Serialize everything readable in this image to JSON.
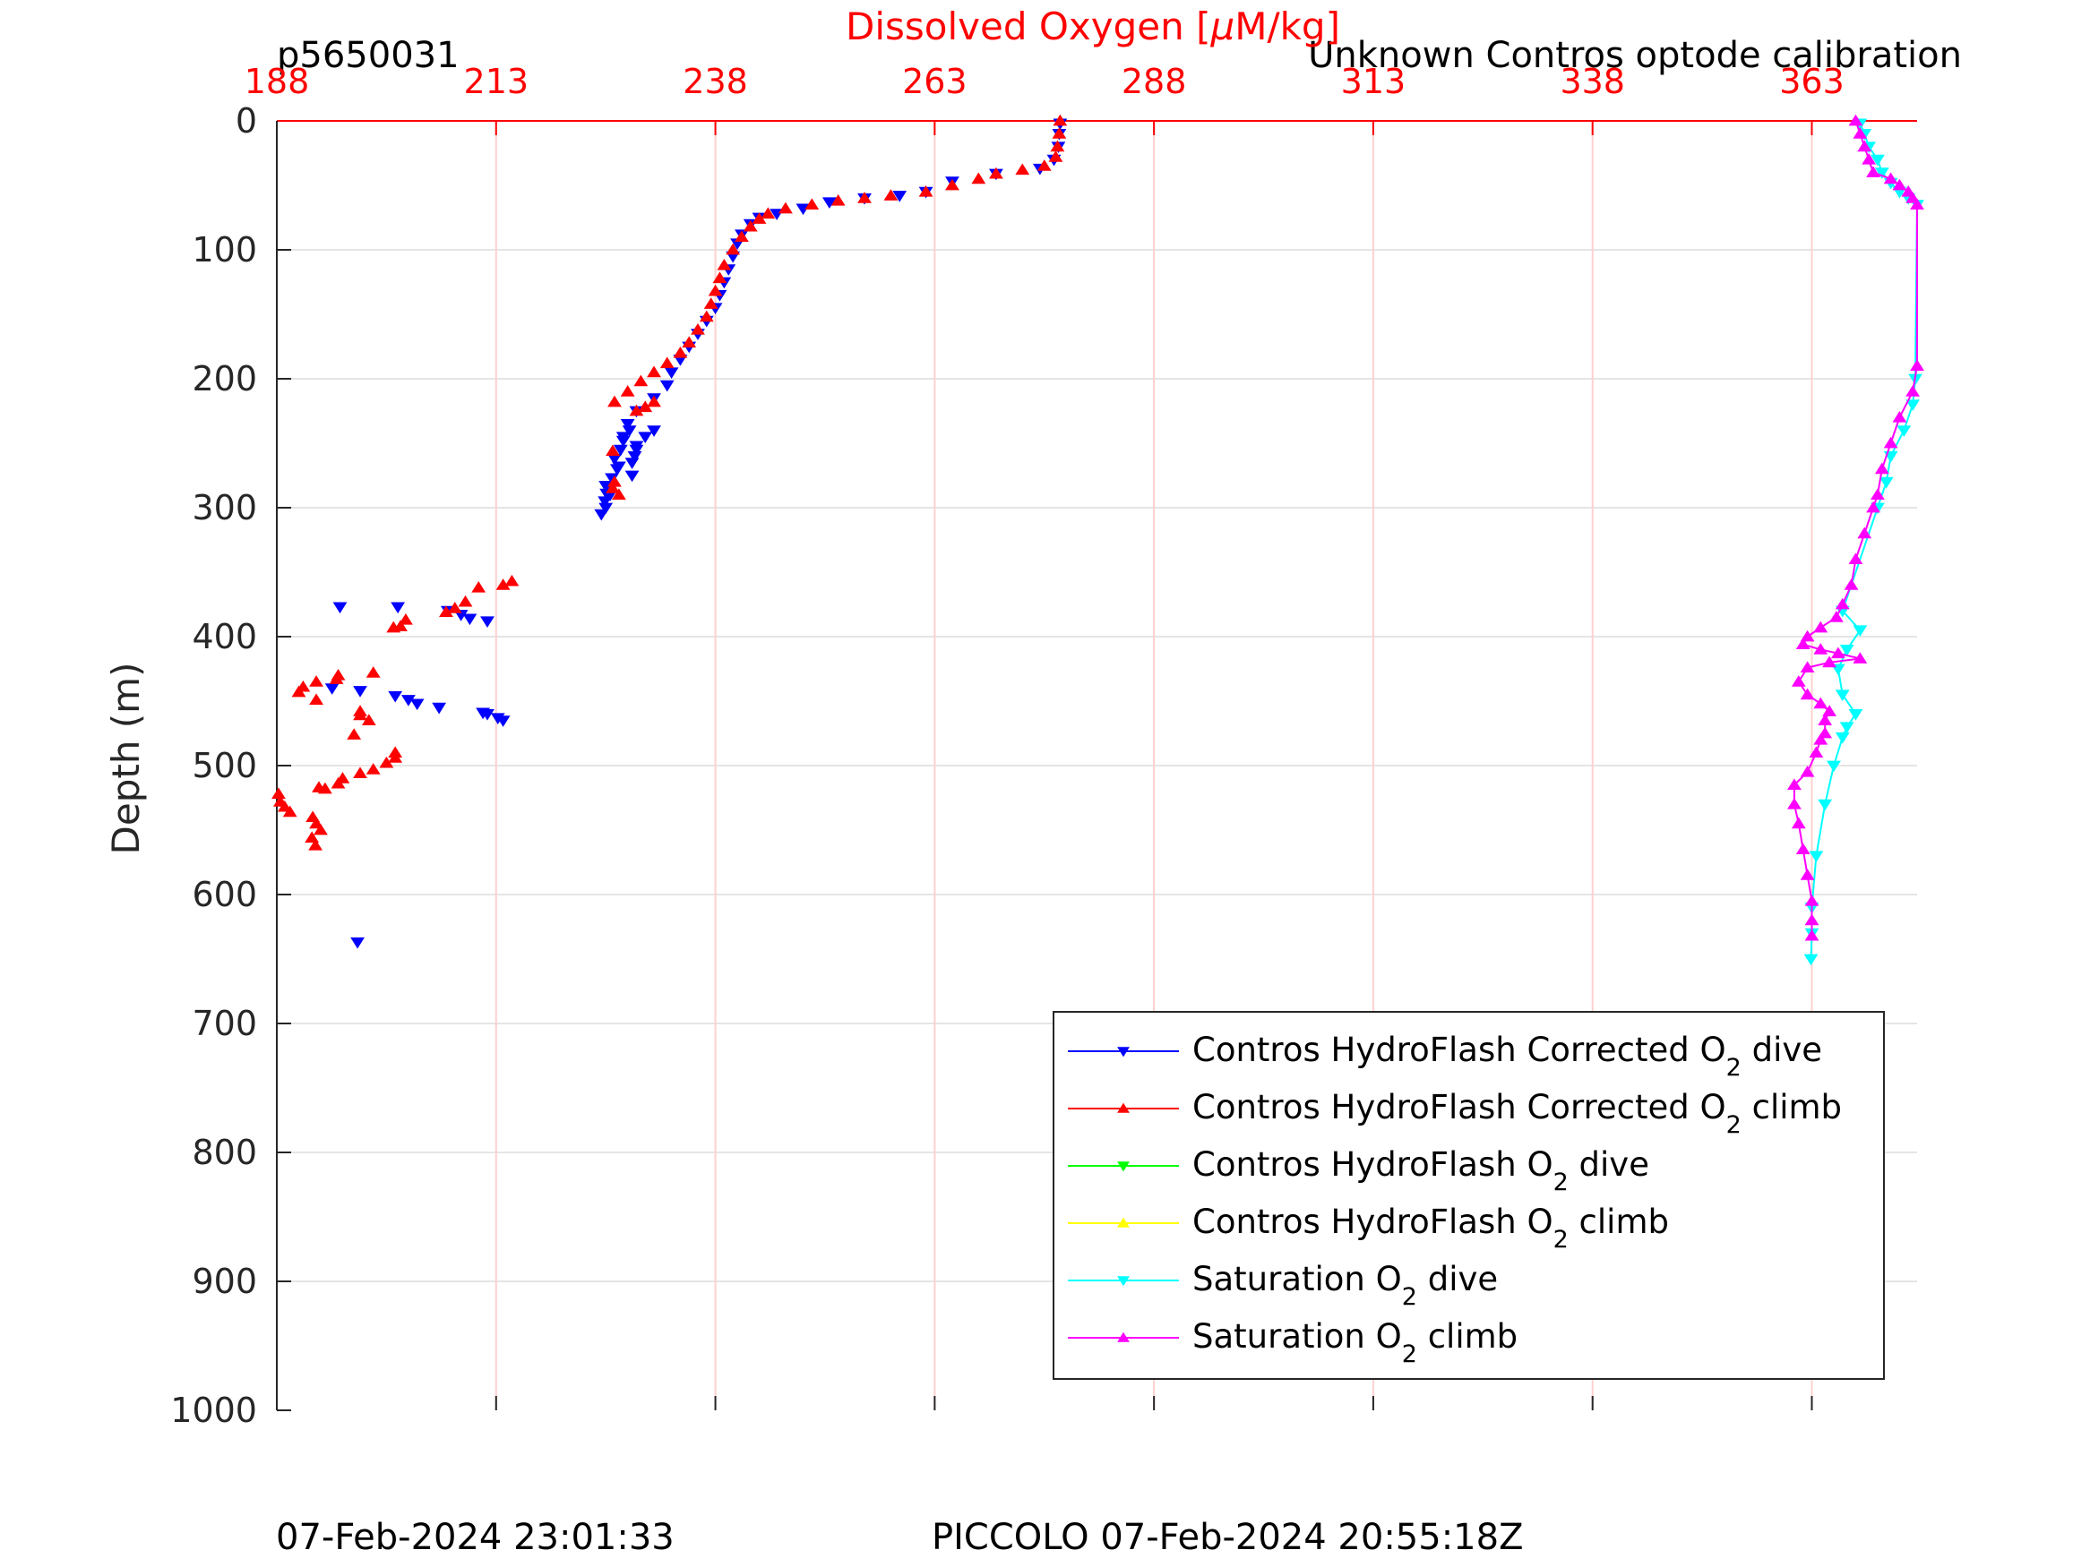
{
  "header": {
    "left_id": "p5650031",
    "right_note": "Unknown Contros optode calibration"
  },
  "footer": {
    "left_timestamp": "07-Feb-2024 23:01:33",
    "right_timestamp": "PICCOLO 07-Feb-2024 20:55:18Z"
  },
  "colors": {
    "dive_corrected": "#0000ff",
    "climb_corrected": "#ff0000",
    "dive_raw": "#00ff00",
    "climb_raw": "#ffff00",
    "sat_dive": "#00ffff",
    "sat_climb": "#ff00ff",
    "axis": "#262626",
    "top_axis": "#ff0000",
    "grid": "#e5e5e5",
    "x_grid": "#ffd0d0"
  },
  "chart_data": {
    "type": "scatter",
    "title": "",
    "xlabel_prefix": "Dissolved Oxygen [",
    "xlabel_mu": "μ",
    "xlabel_suffix": "M/kg]",
    "ylabel": "Depth (m)",
    "xlim": [
      188,
      375
    ],
    "ylim": [
      0,
      1000
    ],
    "y_reversed": true,
    "x_ticks": [
      "188",
      "213",
      "238",
      "263",
      "288",
      "313",
      "338",
      "363"
    ],
    "y_ticks": [
      "0",
      "100",
      "200",
      "300",
      "400",
      "500",
      "600",
      "700",
      "800",
      "900",
      "1000"
    ],
    "grid": true,
    "legend_position": "lower-right",
    "legend": [
      {
        "main": "Contros HydroFlash Corrected O",
        "sub": "2",
        "tail": " dive",
        "color_key": "dive_corrected",
        "marker": "down"
      },
      {
        "main": "Contros HydroFlash Corrected O",
        "sub": "2",
        "tail": " climb",
        "color_key": "climb_corrected",
        "marker": "up"
      },
      {
        "main": "Contros HydroFlash O",
        "sub": "2",
        "tail": " dive",
        "color_key": "dive_raw",
        "marker": "down"
      },
      {
        "main": "Contros HydroFlash O",
        "sub": "2",
        "tail": " climb",
        "color_key": "climb_raw",
        "marker": "up"
      },
      {
        "main": "Saturation O",
        "sub": "2",
        "tail": " dive",
        "color_key": "sat_dive",
        "marker": "down"
      },
      {
        "main": "Saturation O",
        "sub": "2",
        "tail": " climb",
        "color_key": "sat_climb",
        "marker": "up"
      }
    ],
    "series": [
      {
        "name": "Contros HydroFlash Corrected O2 dive",
        "color_key": "dive_corrected",
        "marker": "down",
        "line": false,
        "points": [
          [
            277.3,
            2
          ],
          [
            277.2,
            10
          ],
          [
            277.1,
            20
          ],
          [
            276.6,
            30
          ],
          [
            275.0,
            37
          ],
          [
            270,
            41
          ],
          [
            265,
            47
          ],
          [
            262,
            55
          ],
          [
            259,
            58
          ],
          [
            255,
            60
          ],
          [
            251,
            63
          ],
          [
            248,
            68
          ],
          [
            245,
            72
          ],
          [
            243,
            75
          ],
          [
            242,
            80
          ],
          [
            241,
            88
          ],
          [
            240.5,
            95
          ],
          [
            240,
            105
          ],
          [
            239.5,
            115
          ],
          [
            239,
            125
          ],
          [
            238.5,
            135
          ],
          [
            238,
            145
          ],
          [
            237,
            155
          ],
          [
            236,
            165
          ],
          [
            235,
            175
          ],
          [
            234,
            185
          ],
          [
            233,
            195
          ],
          [
            232.5,
            205
          ],
          [
            231,
            215
          ],
          [
            229,
            225
          ],
          [
            228,
            235
          ],
          [
            227.5,
            245
          ],
          [
            229,
            255
          ],
          [
            228.5,
            265
          ],
          [
            228.5,
            275
          ],
          [
            225.5,
            283
          ],
          [
            226.8,
            270
          ],
          [
            226,
            290
          ],
          [
            225.5,
            300
          ],
          [
            225,
            305
          ]
        ]
      },
      {
        "name": "Contros HydroFlash Corrected O2 dive (scattered)",
        "color_key": "dive_corrected",
        "marker": "down",
        "line": false,
        "points": [
          [
            227.2,
            255
          ],
          [
            226.5,
            262
          ],
          [
            227.0,
            268
          ],
          [
            226.2,
            277
          ],
          [
            225.8,
            283
          ],
          [
            225.6,
            289
          ],
          [
            225.4,
            295
          ],
          [
            227.5,
            248
          ],
          [
            229.0,
            252
          ],
          [
            230.0,
            245
          ],
          [
            231.0,
            240
          ],
          [
            228.2,
            240
          ],
          [
            228.8,
            260
          ],
          [
            195.2,
            377
          ],
          [
            201.8,
            377
          ],
          [
            207.5,
            380
          ],
          [
            209,
            383
          ],
          [
            210,
            386
          ],
          [
            212,
            388
          ],
          [
            194.3,
            440
          ],
          [
            197.5,
            442
          ],
          [
            201.5,
            446
          ],
          [
            203,
            449
          ],
          [
            204,
            452
          ],
          [
            206.5,
            455
          ],
          [
            211.5,
            459
          ],
          [
            212,
            460
          ],
          [
            213.2,
            463
          ],
          [
            213.8,
            465
          ],
          [
            197.2,
            637
          ]
        ]
      },
      {
        "name": "Contros HydroFlash Corrected O2 climb",
        "color_key": "climb_corrected",
        "marker": "up",
        "line": false,
        "points": [
          [
            277.3,
            0
          ],
          [
            277.2,
            10
          ],
          [
            277.0,
            20
          ],
          [
            276.8,
            28
          ],
          [
            275.5,
            35
          ],
          [
            273,
            38
          ],
          [
            270,
            41
          ],
          [
            268,
            45
          ],
          [
            265,
            50
          ],
          [
            262,
            55
          ],
          [
            258,
            58
          ],
          [
            255,
            60
          ],
          [
            252,
            62
          ],
          [
            249,
            65
          ],
          [
            246,
            68
          ],
          [
            244,
            72
          ],
          [
            243,
            76
          ],
          [
            242,
            82
          ],
          [
            241,
            90
          ],
          [
            240,
            100
          ],
          [
            239,
            112
          ],
          [
            238.5,
            122
          ],
          [
            238,
            132
          ],
          [
            237.5,
            142
          ],
          [
            237,
            152
          ],
          [
            236,
            162
          ],
          [
            235,
            172
          ],
          [
            234,
            180
          ],
          [
            232.5,
            188
          ],
          [
            231,
            195
          ],
          [
            229.5,
            202
          ],
          [
            228,
            210
          ],
          [
            226.5,
            218
          ],
          [
            229,
            225
          ],
          [
            230,
            222
          ],
          [
            231,
            218
          ]
        ]
      },
      {
        "name": "Contros HydroFlash Corrected O2 climb (scattered)",
        "color_key": "climb_corrected",
        "marker": "up",
        "line": false,
        "points": [
          [
            226.3,
            256
          ],
          [
            226.5,
            280
          ],
          [
            226.3,
            285
          ],
          [
            227,
            290
          ],
          [
            214.8,
            357
          ],
          [
            213.8,
            360
          ],
          [
            211,
            362
          ],
          [
            209.5,
            373
          ],
          [
            208.3,
            378
          ],
          [
            207.3,
            381
          ],
          [
            202.7,
            387
          ],
          [
            202.1,
            392
          ],
          [
            201.3,
            393
          ],
          [
            199,
            428
          ],
          [
            195,
            430
          ],
          [
            194.8,
            433
          ],
          [
            192.5,
            435
          ],
          [
            191,
            439
          ],
          [
            190.5,
            443
          ],
          [
            192.5,
            449
          ],
          [
            197.5,
            458
          ],
          [
            197.5,
            461
          ],
          [
            198.5,
            465
          ],
          [
            196.8,
            476
          ],
          [
            201.5,
            490
          ],
          [
            201.5,
            494
          ],
          [
            200.5,
            498
          ],
          [
            199,
            503
          ],
          [
            197.5,
            506
          ],
          [
            195.5,
            510
          ],
          [
            195,
            514
          ],
          [
            192.8,
            517
          ],
          [
            193.5,
            518
          ],
          [
            188.2,
            522
          ],
          [
            188.4,
            528
          ],
          [
            188.9,
            532
          ],
          [
            189.5,
            536
          ],
          [
            192.1,
            540
          ],
          [
            192.5,
            545
          ],
          [
            193.0,
            550
          ],
          [
            192.0,
            556
          ],
          [
            192.4,
            562
          ]
        ]
      },
      {
        "name": "Saturation O2 dive",
        "color_key": "sat_dive",
        "marker": "down",
        "line": true,
        "points": [
          [
            368.5,
            2
          ],
          [
            369,
            10
          ],
          [
            369.5,
            20
          ],
          [
            370.5,
            30
          ],
          [
            371,
            40
          ],
          [
            372,
            48
          ],
          [
            373,
            55
          ],
          [
            374,
            60
          ],
          [
            375,
            65
          ],
          [
            374.8,
            200
          ],
          [
            374.5,
            220
          ],
          [
            373.5,
            240
          ],
          [
            372,
            260
          ],
          [
            371.5,
            280
          ],
          [
            370.5,
            300
          ],
          [
            366.5,
            380
          ],
          [
            368.5,
            395
          ],
          [
            367,
            410
          ],
          [
            366,
            425
          ],
          [
            366.5,
            445
          ],
          [
            368,
            460
          ],
          [
            367,
            470
          ],
          [
            366.5,
            478
          ],
          [
            365.5,
            500
          ],
          [
            364.5,
            530
          ],
          [
            363.5,
            570
          ],
          [
            363,
            610
          ],
          [
            363,
            630
          ],
          [
            362.9,
            650
          ]
        ]
      },
      {
        "name": "Saturation O2 climb",
        "color_key": "sat_climb",
        "marker": "up",
        "line": true,
        "points": [
          [
            368,
            0
          ],
          [
            368.5,
            10
          ],
          [
            369,
            20
          ],
          [
            369.5,
            30
          ],
          [
            370,
            40
          ],
          [
            372,
            45
          ],
          [
            373,
            50
          ],
          [
            374,
            55
          ],
          [
            374.5,
            60
          ],
          [
            375,
            65
          ],
          [
            375,
            190
          ],
          [
            374.5,
            210
          ],
          [
            373,
            230
          ],
          [
            372,
            250
          ],
          [
            371,
            270
          ],
          [
            370.5,
            290
          ],
          [
            370,
            300
          ],
          [
            369,
            320
          ],
          [
            368,
            340
          ],
          [
            367.5,
            360
          ],
          [
            366.5,
            375
          ],
          [
            365.8,
            385
          ],
          [
            364,
            393
          ],
          [
            362.5,
            400
          ],
          [
            362,
            406
          ],
          [
            364,
            410
          ],
          [
            366,
            413
          ],
          [
            368.5,
            417
          ],
          [
            365,
            420
          ],
          [
            362.5,
            424
          ],
          [
            361.5,
            435
          ],
          [
            362.5,
            445
          ],
          [
            364,
            452
          ],
          [
            365,
            458
          ],
          [
            364.5,
            465
          ],
          [
            364.5,
            475
          ],
          [
            364,
            480
          ],
          [
            363.5,
            490
          ],
          [
            362.5,
            505
          ],
          [
            361,
            515
          ],
          [
            361,
            530
          ],
          [
            361.5,
            545
          ],
          [
            362,
            565
          ],
          [
            362.5,
            585
          ],
          [
            363,
            605
          ],
          [
            363,
            620
          ],
          [
            363,
            632
          ]
        ]
      }
    ]
  }
}
